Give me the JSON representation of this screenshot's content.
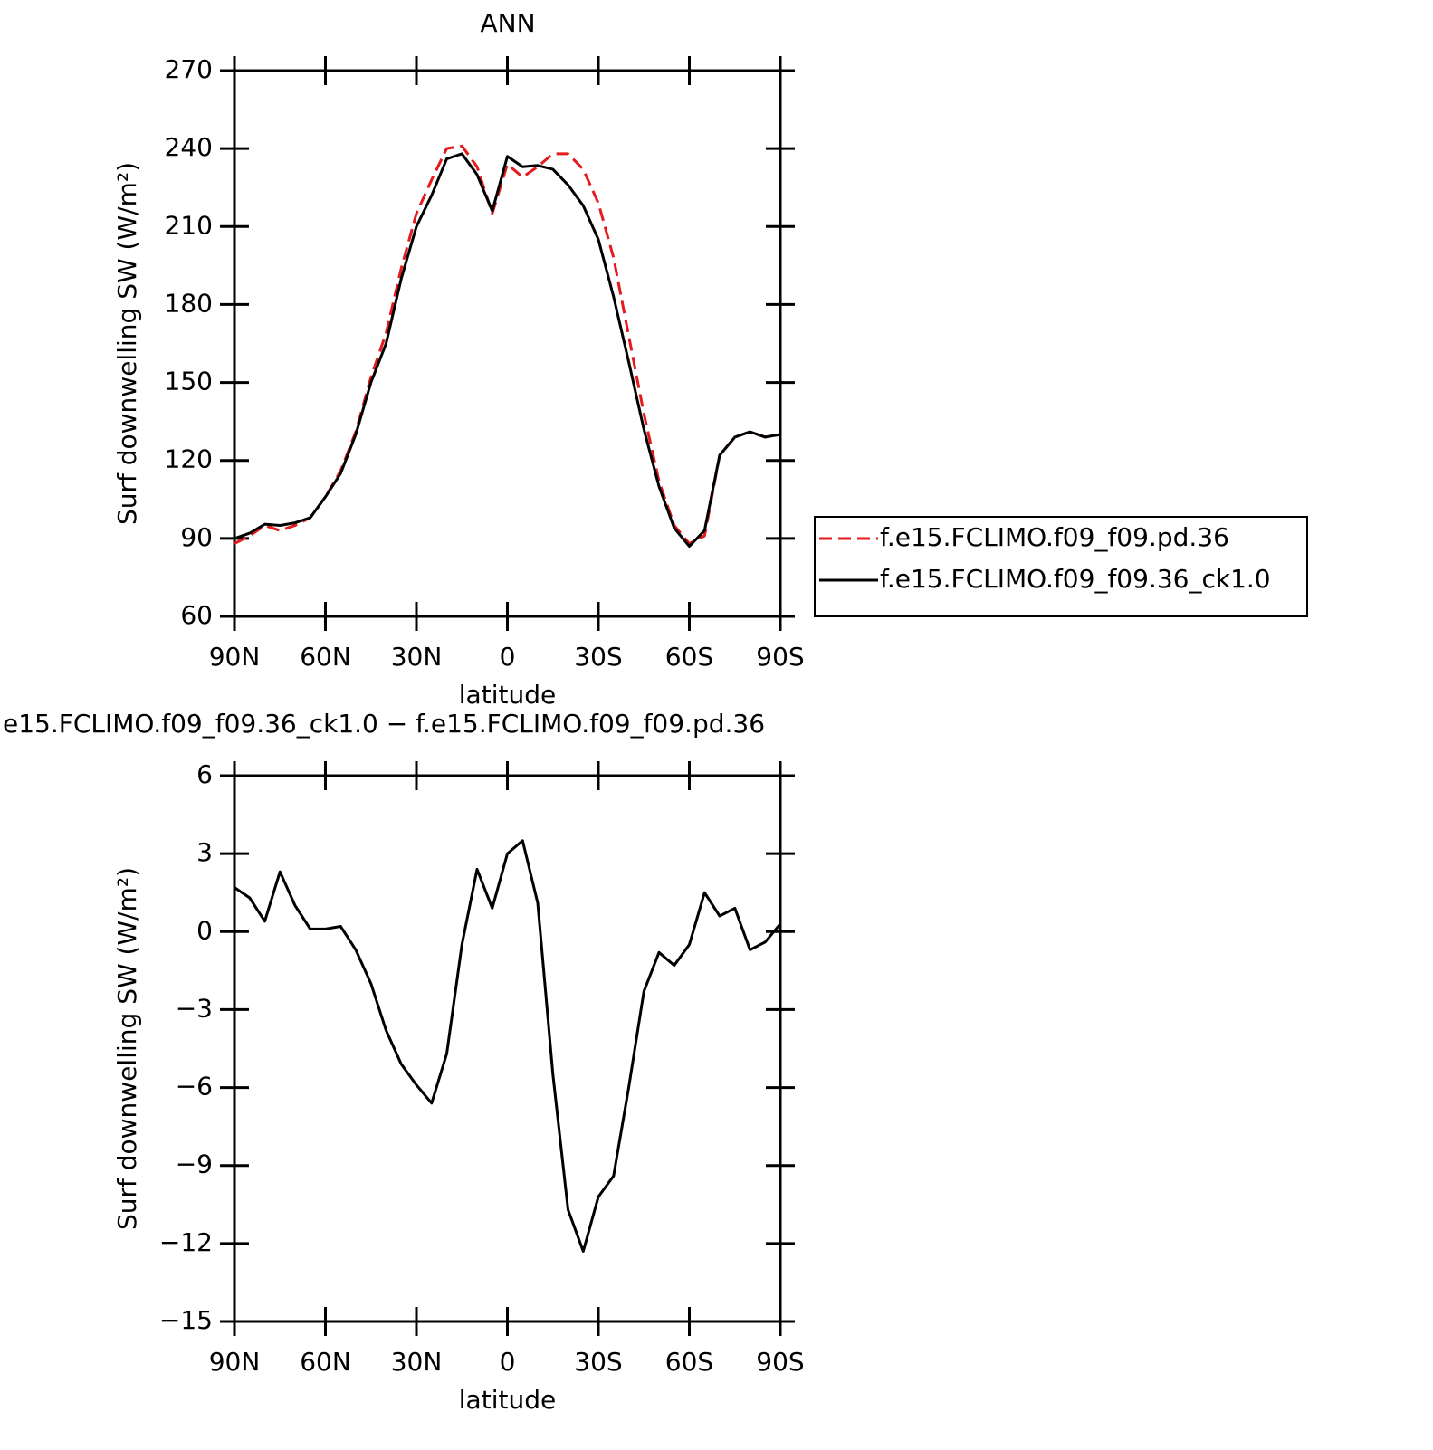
{
  "chart_data": [
    {
      "type": "line",
      "title": "ANN",
      "xlabel": "latitude",
      "ylabel": "Surf downwelling SW (W/m²)",
      "x": [
        90,
        85,
        80,
        75,
        70,
        65,
        60,
        55,
        50,
        45,
        40,
        35,
        30,
        25,
        20,
        15,
        10,
        5,
        0,
        -5,
        -10,
        -15,
        -20,
        -25,
        -30,
        -35,
        -40,
        -45,
        -50,
        -55,
        -60,
        -65,
        -70,
        -75,
        -80,
        -85,
        -90
      ],
      "series": [
        {
          "name": "f.e15.FCLIMO.f09_f09.pd.36",
          "color": "#e41a1c",
          "style": "dashed",
          "values": [
            88,
            91,
            95,
            93,
            95,
            98,
            106,
            116,
            131,
            152,
            169,
            194,
            215,
            228,
            240,
            241,
            233,
            215,
            234,
            229,
            233,
            238,
            238,
            232,
            219,
            198,
            168,
            138,
            112,
            95,
            88,
            91,
            122,
            129,
            131,
            129,
            130
          ]
        },
        {
          "name": "f.e15.FCLIMO.f09_f09.36_ck1.0",
          "color": "#000000",
          "style": "solid",
          "values": [
            90,
            92,
            95.5,
            95,
            96,
            98,
            106,
            115,
            130,
            150,
            165,
            190,
            210,
            222,
            236,
            238,
            230,
            216,
            237,
            233,
            233.5,
            232,
            226,
            218,
            205,
            183,
            158,
            132,
            110,
            94,
            87,
            93,
            122,
            129,
            131,
            129,
            130
          ]
        }
      ],
      "xlim": [
        90,
        -90
      ],
      "xticks": [
        {
          "value": 90,
          "label": "90N"
        },
        {
          "value": 60,
          "label": "60N"
        },
        {
          "value": 30,
          "label": "30N"
        },
        0,
        {
          "value": -30,
          "label": "30S"
        },
        {
          "value": -60,
          "label": "60S"
        },
        {
          "value": -90,
          "label": "90S"
        }
      ],
      "ylim": [
        60,
        270
      ],
      "yticks": [
        60,
        90,
        120,
        150,
        180,
        210,
        240,
        270
      ],
      "legend": "right"
    },
    {
      "type": "line",
      "title": "e15.FCLIMO.f09_f09.36_ck1.0 − f.e15.FCLIMO.f09_f09.pd.36",
      "xlabel": "latitude",
      "ylabel": "Surf downwelling SW (W/m²)",
      "x": [
        90,
        85,
        80,
        75,
        70,
        65,
        60,
        55,
        50,
        45,
        40,
        35,
        30,
        25,
        20,
        15,
        10,
        5,
        0,
        -5,
        -10,
        -15,
        -20,
        -25,
        -30,
        -35,
        -40,
        -45,
        -50,
        -55,
        -60,
        -65,
        -70,
        -75,
        -80,
        -85,
        -90
      ],
      "values": [
        1.7,
        1.3,
        0.4,
        2.3,
        1.0,
        0.1,
        0.1,
        0.2,
        -0.7,
        -2,
        -3.8,
        -5.1,
        -5.9,
        -6.6,
        -4.7,
        -0.5,
        2.4,
        0.9,
        3.0,
        3.5,
        1.1,
        -5.5,
        -10.7,
        -12.3,
        -10.2,
        -9.4,
        -6,
        -2.3,
        -0.8,
        -1.3,
        -0.5,
        1.5,
        0.6,
        0.9,
        -0.7,
        -0.4,
        0.3
      ],
      "color": "#000000",
      "xlim": [
        90,
        -90
      ],
      "xticks": [
        {
          "value": 90,
          "label": "90N"
        },
        {
          "value": 60,
          "label": "60N"
        },
        {
          "value": 30,
          "label": "30N"
        },
        0,
        {
          "value": -30,
          "label": "30S"
        },
        {
          "value": -60,
          "label": "60S"
        },
        {
          "value": -90,
          "label": "90S"
        }
      ],
      "ylim": [
        -15,
        6
      ],
      "yticks": [
        {
          "value": -15,
          "label": "−15"
        },
        {
          "value": -12,
          "label": "−12"
        },
        {
          "value": -9,
          "label": "−9"
        },
        {
          "value": -6,
          "label": "−6"
        },
        {
          "value": -3,
          "label": "−3"
        },
        0,
        3,
        6
      ]
    }
  ]
}
